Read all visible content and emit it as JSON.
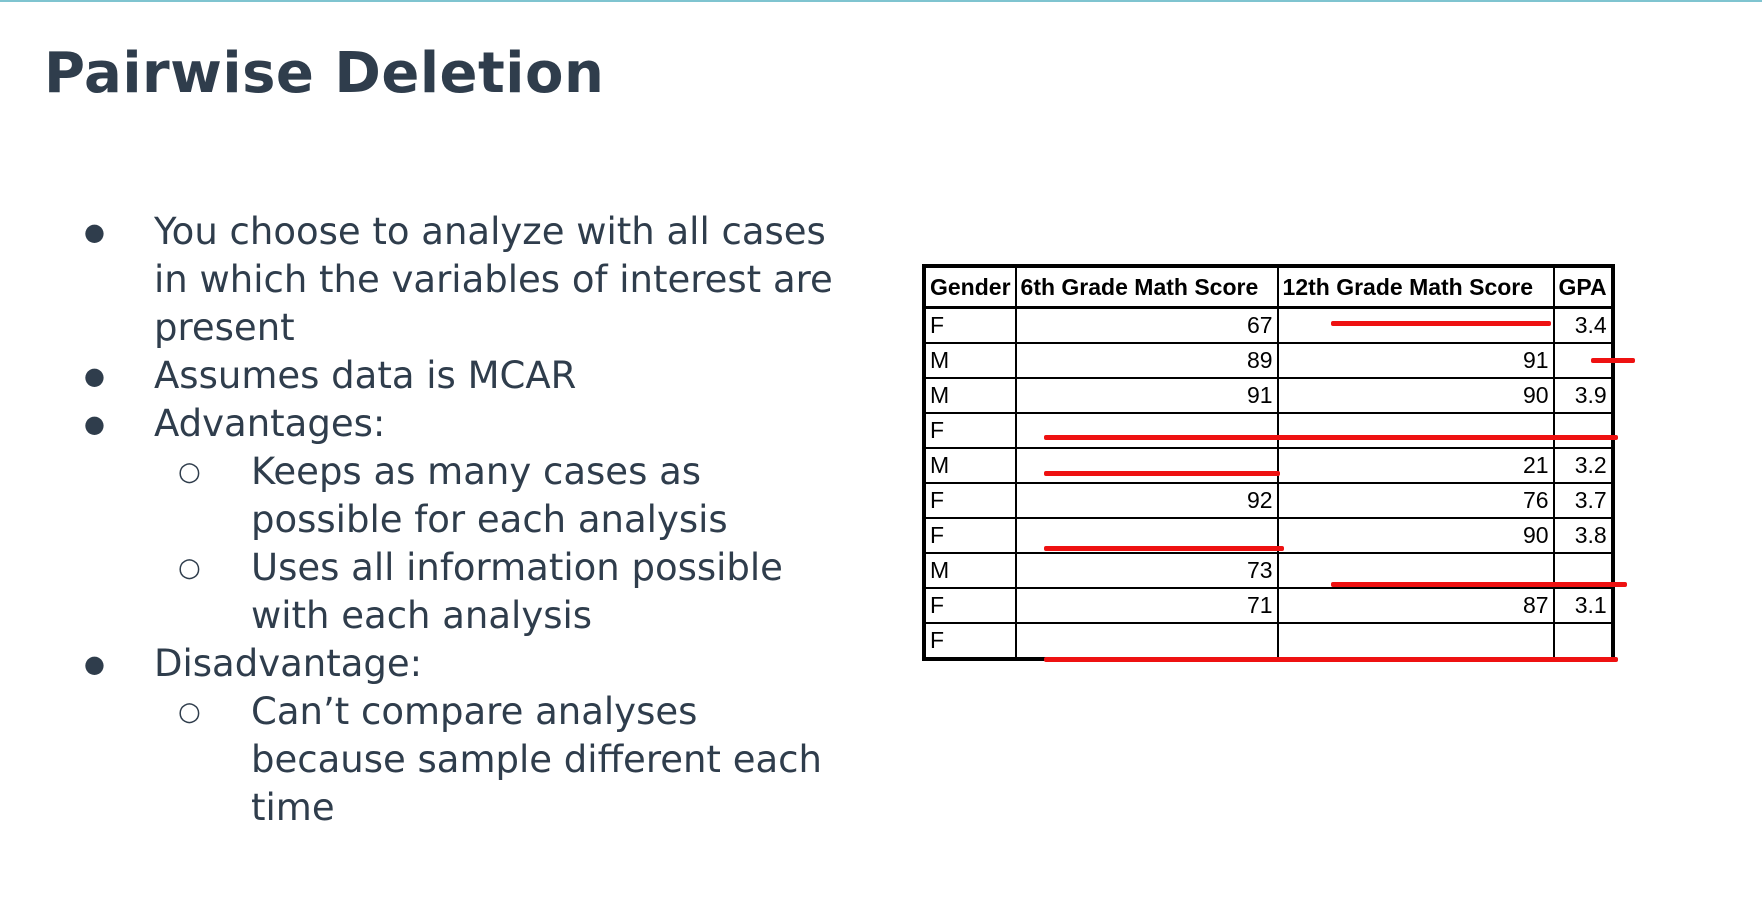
{
  "slide": {
    "title": "Pairwise Deletion",
    "accent_color": "#7fc4d0",
    "text_color": "#2f3d4c",
    "strike_color": "#ee1111"
  },
  "bullets": {
    "bullet_glyph": "●",
    "sub_glyph": "○",
    "b1": "You choose to analyze with all cases in which the variables of interest are present",
    "b2": "Assumes data is MCAR",
    "b3": "Advantages:",
    "b3_sub1": "Keeps as many cases as possible for each analysis",
    "b3_sub2": "Uses all information possible with each analysis",
    "b4": "Disadvantage:",
    "b4_sub1": "Can’t compare analyses because sample different each time"
  },
  "table": {
    "headers": [
      "Gender",
      "6th Grade Math Score",
      "12th Grade Math Score",
      "GPA"
    ],
    "rows": [
      {
        "gender": "F",
        "m6": "67",
        "m12": "",
        "gpa": "3.4"
      },
      {
        "gender": "M",
        "m6": "89",
        "m12": "91",
        "gpa": ""
      },
      {
        "gender": "M",
        "m6": "91",
        "m12": "90",
        "gpa": "3.9"
      },
      {
        "gender": "F",
        "m6": "",
        "m12": "",
        "gpa": ""
      },
      {
        "gender": "M",
        "m6": "",
        "m12": "21",
        "gpa": "3.2"
      },
      {
        "gender": "F",
        "m6": "92",
        "m12": "76",
        "gpa": "3.7"
      },
      {
        "gender": "F",
        "m6": "",
        "m12": "90",
        "gpa": "3.8"
      },
      {
        "gender": "M",
        "m6": "73",
        "m12": "",
        "gpa": ""
      },
      {
        "gender": "F",
        "m6": "71",
        "m12": "87",
        "gpa": "3.1"
      },
      {
        "gender": "F",
        "m6": "",
        "m12": "",
        "gpa": ""
      }
    ]
  }
}
